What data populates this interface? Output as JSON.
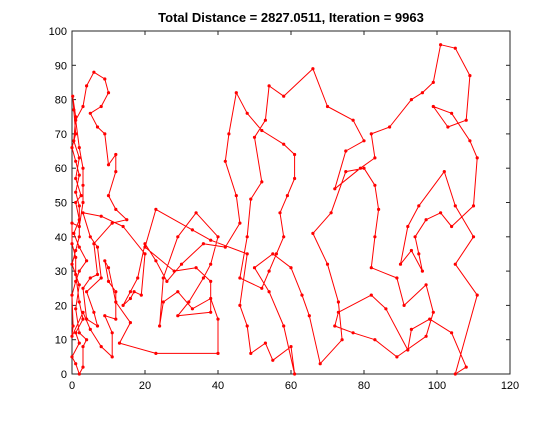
{
  "figure": {
    "title": "Total Distance = 2827.0511, Iteration = 9963",
    "background": "#ffffff"
  },
  "chart_data": {
    "type": "line",
    "title": "Total Distance = 2827.0511, Iteration = 9963",
    "xlabel": "",
    "ylabel": "",
    "xlim": [
      0,
      120
    ],
    "ylim": [
      0,
      100
    ],
    "x_ticks": [
      0,
      20,
      40,
      60,
      80,
      100,
      120
    ],
    "y_ticks": [
      0,
      10,
      20,
      30,
      40,
      50,
      60,
      70,
      80,
      90,
      100
    ],
    "grid": false,
    "legend": "none",
    "line_color": "#ff0000",
    "marker": "dot",
    "closed_path": true,
    "series": [
      {
        "points": [
          [
            0.2,
            81
          ],
          [
            1,
            75
          ],
          [
            0.5,
            68
          ],
          [
            2,
            63
          ],
          [
            1,
            57
          ],
          [
            2.5,
            52
          ],
          [
            1,
            50
          ],
          [
            2,
            45
          ],
          [
            0.5,
            41
          ],
          [
            2,
            37
          ],
          [
            4,
            33
          ],
          [
            2,
            30
          ],
          [
            1,
            27
          ],
          [
            0,
            23
          ],
          [
            0.3,
            14
          ],
          [
            0,
            11
          ],
          [
            3,
            18
          ],
          [
            5,
            13
          ],
          [
            8,
            8
          ],
          [
            11,
            5
          ],
          [
            11,
            12
          ],
          [
            9,
            17
          ],
          [
            12,
            16
          ],
          [
            12,
            24
          ],
          [
            10,
            27
          ],
          [
            9,
            33
          ],
          [
            10,
            31
          ],
          [
            12,
            21
          ],
          [
            16,
            15
          ],
          [
            13,
            9
          ],
          [
            23,
            6
          ],
          [
            40,
            6
          ],
          [
            40,
            16
          ],
          [
            38,
            22
          ],
          [
            33,
            19
          ],
          [
            29,
            24
          ],
          [
            25,
            21
          ],
          [
            24,
            14
          ],
          [
            25,
            28
          ],
          [
            29,
            40
          ],
          [
            34,
            47
          ],
          [
            40,
            40
          ],
          [
            38,
            32
          ],
          [
            36,
            28
          ],
          [
            32,
            21
          ],
          [
            29,
            17
          ],
          [
            38,
            18
          ],
          [
            38,
            27
          ],
          [
            34,
            31
          ],
          [
            28,
            30
          ],
          [
            20,
            37
          ],
          [
            23,
            48
          ],
          [
            33,
            42
          ],
          [
            38,
            39
          ],
          [
            48,
            35
          ],
          [
            46,
            20
          ],
          [
            48,
            14
          ],
          [
            49,
            6
          ],
          [
            53,
            9
          ],
          [
            55,
            4
          ],
          [
            60,
            8
          ],
          [
            61,
            0
          ],
          [
            58,
            14
          ],
          [
            54,
            24
          ],
          [
            50,
            31
          ],
          [
            55,
            35
          ],
          [
            60,
            31
          ],
          [
            63,
            23
          ],
          [
            65,
            17
          ],
          [
            68,
            3
          ],
          [
            74,
            10
          ],
          [
            73,
            21
          ],
          [
            70,
            32
          ],
          [
            66,
            41
          ],
          [
            71,
            47
          ],
          [
            75,
            59
          ],
          [
            80,
            60
          ],
          [
            83,
            55
          ],
          [
            84,
            48
          ],
          [
            83,
            40
          ],
          [
            82,
            31
          ],
          [
            89,
            28
          ],
          [
            91,
            20
          ],
          [
            97,
            26
          ],
          [
            99,
            18
          ],
          [
            97,
            11
          ],
          [
            89,
            5
          ],
          [
            83,
            10
          ],
          [
            77,
            12
          ],
          [
            72,
            14
          ],
          [
            73,
            18
          ],
          [
            82,
            23
          ],
          [
            86,
            19
          ],
          [
            92,
            7
          ],
          [
            93,
            13
          ],
          [
            98,
            16
          ],
          [
            104,
            12
          ],
          [
            108,
            2
          ],
          [
            105,
            0
          ],
          [
            111,
            23
          ],
          [
            105,
            32
          ],
          [
            110,
            40
          ],
          [
            105,
            49
          ],
          [
            102,
            59
          ],
          [
            95,
            49
          ],
          [
            92,
            43
          ],
          [
            90,
            32
          ],
          [
            93,
            36
          ],
          [
            96,
            30
          ],
          [
            95,
            35
          ],
          [
            94,
            40
          ],
          [
            97,
            45
          ],
          [
            101,
            47
          ],
          [
            104,
            43
          ],
          [
            110,
            49
          ],
          [
            111,
            63
          ],
          [
            109,
            68
          ],
          [
            104,
            76
          ],
          [
            99,
            78
          ],
          [
            103,
            72
          ],
          [
            108,
            74
          ],
          [
            109,
            87
          ],
          [
            105,
            95
          ],
          [
            101,
            96
          ],
          [
            99,
            85
          ],
          [
            96,
            82
          ],
          [
            93,
            80
          ],
          [
            87,
            72
          ],
          [
            82,
            70
          ],
          [
            83,
            63
          ],
          [
            79,
            60
          ],
          [
            72,
            54
          ],
          [
            75,
            65
          ],
          [
            80,
            68
          ],
          [
            77,
            74
          ],
          [
            70,
            78
          ],
          [
            66,
            89
          ],
          [
            58,
            81
          ],
          [
            54,
            84
          ],
          [
            53,
            74
          ],
          [
            50,
            69
          ],
          [
            52,
            56
          ],
          [
            49,
            51
          ],
          [
            48,
            40
          ],
          [
            46,
            28
          ],
          [
            52,
            25
          ],
          [
            54,
            30
          ],
          [
            56,
            35
          ],
          [
            58,
            40
          ],
          [
            57,
            47
          ],
          [
            59,
            52
          ],
          [
            61,
            57
          ],
          [
            61,
            64
          ],
          [
            58,
            67
          ],
          [
            52,
            71
          ],
          [
            48,
            76
          ],
          [
            45,
            82
          ],
          [
            43,
            70
          ],
          [
            42,
            62
          ],
          [
            45,
            52
          ],
          [
            46,
            44
          ],
          [
            42,
            37
          ],
          [
            36,
            38
          ],
          [
            30,
            32
          ],
          [
            26,
            27
          ],
          [
            23,
            33
          ],
          [
            20,
            38
          ],
          [
            18,
            28
          ],
          [
            16,
            24
          ],
          [
            14,
            20
          ],
          [
            16,
            22
          ],
          [
            17,
            24
          ],
          [
            19,
            23
          ],
          [
            20,
            35
          ],
          [
            14,
            43
          ],
          [
            8,
            46
          ],
          [
            3,
            47
          ],
          [
            5,
            40
          ],
          [
            7,
            37
          ],
          [
            8,
            28
          ],
          [
            4,
            24
          ],
          [
            6,
            18
          ],
          [
            7,
            14
          ],
          [
            4,
            16
          ],
          [
            3,
            25
          ],
          [
            5,
            28
          ],
          [
            7,
            29
          ],
          [
            6,
            38
          ],
          [
            11,
            44
          ],
          [
            15,
            45
          ],
          [
            12,
            48
          ],
          [
            10,
            52
          ],
          [
            12,
            59
          ],
          [
            12,
            64
          ],
          [
            10,
            61
          ],
          [
            9,
            70
          ],
          [
            7,
            72
          ],
          [
            5,
            76
          ],
          [
            8,
            78
          ],
          [
            10,
            82
          ],
          [
            9,
            86
          ],
          [
            6,
            88
          ],
          [
            4,
            84
          ],
          [
            3,
            78
          ],
          [
            1,
            74
          ],
          [
            2,
            66
          ],
          [
            3,
            60
          ],
          [
            3,
            55
          ],
          [
            3,
            50
          ],
          [
            2,
            43
          ],
          [
            0,
            44
          ],
          [
            0,
            38
          ],
          [
            1,
            34
          ],
          [
            1,
            29
          ],
          [
            2,
            21
          ],
          [
            3,
            16
          ],
          [
            1,
            12
          ],
          [
            2,
            9
          ],
          [
            0,
            5
          ],
          [
            1,
            3
          ],
          [
            2,
            0
          ],
          [
            3,
            2
          ],
          [
            3,
            8
          ],
          [
            4,
            10
          ],
          [
            2,
            12
          ],
          [
            1,
            19
          ],
          [
            2,
            26
          ],
          [
            0,
            32
          ],
          [
            1,
            36
          ],
          [
            2,
            40
          ],
          [
            2,
            49
          ],
          [
            1,
            53
          ],
          [
            2,
            58
          ],
          [
            1,
            62
          ],
          [
            0,
            66
          ],
          [
            1,
            70
          ],
          [
            0.5,
            77
          ]
        ]
      }
    ]
  }
}
